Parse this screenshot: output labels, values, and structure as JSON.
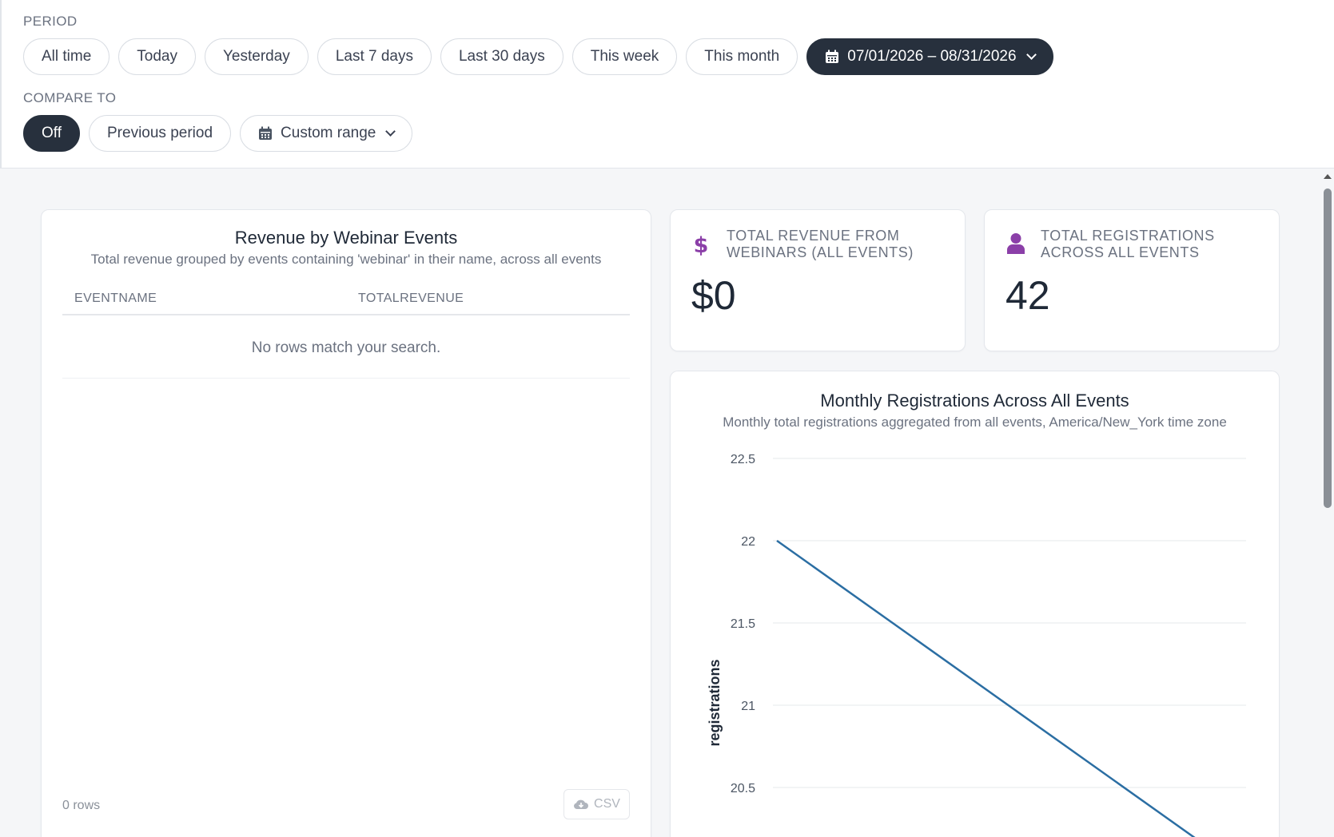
{
  "filters": {
    "period_label": "PERIOD",
    "period_options": [
      "All time",
      "Today",
      "Yesterday",
      "Last 7 days",
      "Last 30 days",
      "This week",
      "This month"
    ],
    "date_range": "07/01/2026 – 08/31/2026",
    "compare_label": "COMPARE TO",
    "compare_off": "Off",
    "compare_previous": "Previous period",
    "compare_custom": "Custom range"
  },
  "revenue_table": {
    "title": "Revenue by Webinar Events",
    "subtitle": "Total revenue grouped by events containing 'webinar' in their name, across all events",
    "columns": [
      "EVENTNAME",
      "TOTALREVENUE"
    ],
    "empty_message": "No rows match your search.",
    "row_count": "0 rows",
    "csv_label": "CSV"
  },
  "kpi_revenue": {
    "label_line1": "TOTAL REVENUE FROM",
    "label_line2": "WEBINARS (ALL EVENTS)",
    "value": "$0",
    "icon": "dollar-icon",
    "icon_color": "#8b3fa8"
  },
  "kpi_registrations": {
    "label_line1": "TOTAL REGISTRATIONS",
    "label_line2": "ACROSS ALL EVENTS",
    "value": "42",
    "icon": "user-icon",
    "icon_color": "#8b3fa8"
  },
  "chart_data": {
    "type": "line",
    "title": "Monthly Registrations Across All Events",
    "subtitle": "Monthly total registrations aggregated from all events, America/New_York time zone",
    "xlabel": "",
    "ylabel": "registrations",
    "y_ticks": [
      "22.5",
      "22",
      "21.5",
      "21",
      "20.5"
    ],
    "ylim": [
      20,
      22.5
    ],
    "grid": true,
    "series": [
      {
        "values": [
          22,
          20
        ]
      }
    ],
    "line_color": "#2b6ea3"
  }
}
